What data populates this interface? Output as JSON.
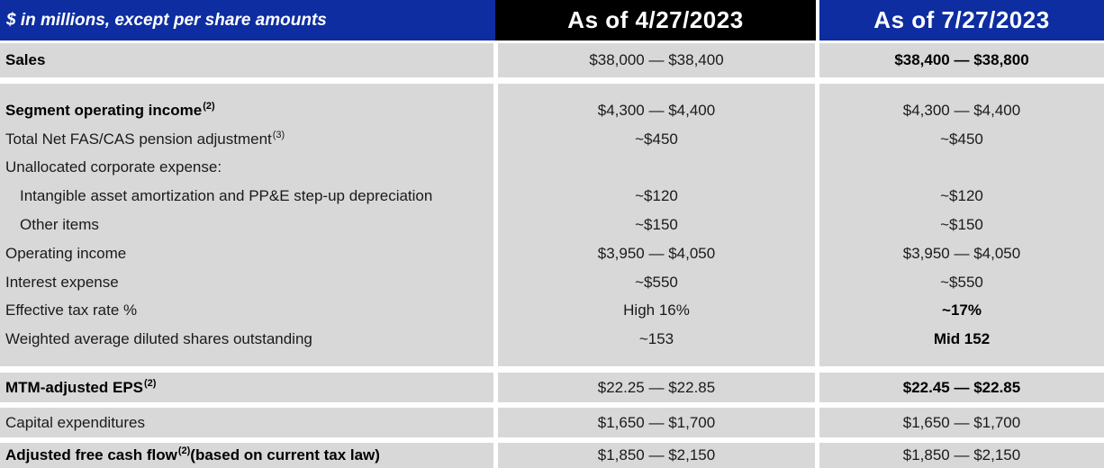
{
  "table": {
    "unit_note": "$ in millions, except per share amounts",
    "columns": [
      "As of 4/27/2023",
      "As of 7/27/2023"
    ],
    "colors": {
      "brand_blue": "#0d2da0",
      "header_black": "#000000",
      "row_gray": "#d8d8d8",
      "text": "#1a1a1a"
    },
    "bands": [
      {
        "name": "sales-band",
        "kind": "sales",
        "rows": [
          {
            "name": "sales",
            "label": "Sales",
            "bold": true,
            "values": [
              {
                "text": "$38,000 — $38,400",
                "bold": false
              },
              {
                "text": "$38,400 — $38,800",
                "bold": true
              }
            ]
          }
        ]
      },
      {
        "name": "operating-detail-band",
        "kind": "middle",
        "rows": [
          {
            "name": "segment-operating-income",
            "label": "Segment operating income",
            "sup": "(2)",
            "bold": true,
            "values": [
              {
                "text": "$4,300 — $4,400",
                "bold": false
              },
              {
                "text": "$4,300 — $4,400",
                "bold": false
              }
            ]
          },
          {
            "name": "fas-cas-pension-adjustment",
            "label": "Total Net FAS/CAS pension adjustment",
            "sup": "(3)",
            "bold": false,
            "values": [
              {
                "text": "~$450",
                "bold": false
              },
              {
                "text": "~$450",
                "bold": false
              }
            ]
          },
          {
            "name": "unallocated-corporate-expense",
            "label": "Unallocated corporate expense:",
            "bold": false,
            "values": [
              {
                "text": "",
                "bold": false
              },
              {
                "text": "",
                "bold": false
              }
            ]
          },
          {
            "name": "intangible-amortization",
            "label": "Intangible asset amortization and PP&E step-up depreciation",
            "indent": true,
            "bold": false,
            "values": [
              {
                "text": "~$120",
                "bold": false
              },
              {
                "text": "~$120",
                "bold": false
              }
            ]
          },
          {
            "name": "other-items",
            "label": "Other items",
            "indent": true,
            "bold": false,
            "values": [
              {
                "text": "~$150",
                "bold": false
              },
              {
                "text": "~$150",
                "bold": false
              }
            ]
          },
          {
            "name": "operating-income",
            "label": "Operating income",
            "bold": false,
            "values": [
              {
                "text": "$3,950 — $4,050",
                "bold": false
              },
              {
                "text": "$3,950 — $4,050",
                "bold": false
              }
            ]
          },
          {
            "name": "interest-expense",
            "label": "Interest expense",
            "bold": false,
            "values": [
              {
                "text": "~$550",
                "bold": false
              },
              {
                "text": "~$550",
                "bold": false
              }
            ]
          },
          {
            "name": "effective-tax-rate",
            "label": "Effective tax rate %",
            "bold": false,
            "values": [
              {
                "text": "High 16%",
                "bold": false
              },
              {
                "text": "~17%",
                "bold": true
              }
            ]
          },
          {
            "name": "weighted-average-diluted-shares",
            "label": "Weighted average diluted shares outstanding",
            "bold": false,
            "values": [
              {
                "text": "~153",
                "bold": false
              },
              {
                "text": "Mid 152",
                "bold": true
              }
            ]
          }
        ]
      },
      {
        "name": "mtm-eps-band",
        "kind": "mtm",
        "rows": [
          {
            "name": "mtm-adjusted-eps",
            "label": "MTM-adjusted EPS",
            "sup": "(2)",
            "bold": true,
            "values": [
              {
                "text": "$22.25 — $22.85",
                "bold": false
              },
              {
                "text": "$22.45 — $22.85",
                "bold": true
              }
            ]
          }
        ]
      },
      {
        "name": "capital-expenditures-band",
        "kind": "capex",
        "rows": [
          {
            "name": "capital-expenditures",
            "label": "Capital expenditures",
            "bold": false,
            "values": [
              {
                "text": "$1,650 — $1,700",
                "bold": false
              },
              {
                "text": "$1,650 — $1,700",
                "bold": false
              }
            ]
          }
        ]
      },
      {
        "name": "adjusted-fcf-band",
        "kind": "fcf",
        "rows": [
          {
            "name": "adjusted-free-cash-flow",
            "label": "Adjusted free cash flow",
            "sup": "(2)",
            "suffix": " (based on current tax law)",
            "bold": true,
            "values": [
              {
                "text": "$1,850 — $2,150",
                "bold": false
              },
              {
                "text": "$1,850 — $2,150",
                "bold": false
              }
            ]
          }
        ]
      }
    ]
  }
}
